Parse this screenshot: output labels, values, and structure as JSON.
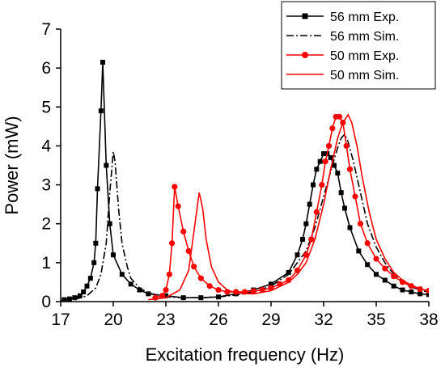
{
  "chart_data": {
    "type": "line",
    "title": "",
    "xlabel": "Excitation frequency (Hz)",
    "ylabel": "Power (mW)",
    "xlim": [
      17,
      38
    ],
    "ylim": [
      0,
      7
    ],
    "xticks": [
      "17",
      "20",
      "23",
      "26",
      "29",
      "32",
      "35",
      "38"
    ],
    "yticks": [
      "0",
      "1",
      "2",
      "3",
      "4",
      "5",
      "6",
      "7"
    ],
    "legend_position": "top-right",
    "grid": false,
    "series": [
      {
        "name": "56 mm Exp.",
        "color": "#000000",
        "line_style": "solid",
        "marker": "square",
        "points": [
          [
            17.2,
            0.05
          ],
          [
            17.5,
            0.07
          ],
          [
            17.8,
            0.1
          ],
          [
            18.1,
            0.15
          ],
          [
            18.3,
            0.25
          ],
          [
            18.5,
            0.4
          ],
          [
            18.7,
            0.6
          ],
          [
            18.9,
            1.0
          ],
          [
            19.0,
            1.5
          ],
          [
            19.1,
            2.9
          ],
          [
            19.3,
            4.9
          ],
          [
            19.4,
            6.15
          ],
          [
            19.6,
            3.5
          ],
          [
            19.8,
            2.0
          ],
          [
            20.0,
            1.2
          ],
          [
            20.5,
            0.7
          ],
          [
            21.0,
            0.45
          ],
          [
            21.5,
            0.3
          ],
          [
            22.0,
            0.2
          ],
          [
            23.0,
            0.15
          ],
          [
            24.0,
            0.1
          ],
          [
            25.0,
            0.1
          ],
          [
            26.0,
            0.12
          ],
          [
            27.0,
            0.2
          ],
          [
            28.0,
            0.3
          ],
          [
            29.0,
            0.45
          ],
          [
            30.0,
            0.75
          ],
          [
            30.5,
            1.2
          ],
          [
            30.8,
            1.6
          ],
          [
            31.0,
            2.0
          ],
          [
            31.2,
            2.5
          ],
          [
            31.4,
            3.0
          ],
          [
            31.6,
            3.4
          ],
          [
            31.8,
            3.6
          ],
          [
            32.0,
            3.8
          ],
          [
            32.2,
            3.8
          ],
          [
            32.4,
            3.7
          ],
          [
            32.6,
            3.5
          ],
          [
            32.8,
            3.3
          ],
          [
            33.0,
            2.8
          ],
          [
            33.2,
            2.4
          ],
          [
            33.5,
            1.9
          ],
          [
            34.0,
            1.3
          ],
          [
            34.5,
            0.95
          ],
          [
            35.0,
            0.7
          ],
          [
            35.5,
            0.55
          ],
          [
            36.0,
            0.4
          ],
          [
            36.5,
            0.3
          ],
          [
            37.0,
            0.25
          ],
          [
            37.5,
            0.2
          ],
          [
            38.0,
            0.18
          ]
        ]
      },
      {
        "name": "56 mm Sim.",
        "color": "#000000",
        "line_style": "dashdot",
        "marker": "none",
        "points": [
          [
            17.0,
            0.02
          ],
          [
            18.0,
            0.08
          ],
          [
            18.5,
            0.15
          ],
          [
            19.0,
            0.35
          ],
          [
            19.3,
            0.7
          ],
          [
            19.6,
            1.5
          ],
          [
            19.8,
            2.8
          ],
          [
            20.0,
            3.85
          ],
          [
            20.1,
            3.6
          ],
          [
            20.3,
            2.4
          ],
          [
            20.5,
            1.5
          ],
          [
            20.8,
            0.9
          ],
          [
            21.0,
            0.6
          ],
          [
            21.5,
            0.35
          ],
          [
            22.0,
            0.22
          ],
          [
            23.0,
            0.12
          ],
          [
            24.0,
            0.1
          ],
          [
            25.0,
            0.1
          ],
          [
            26.0,
            0.12
          ],
          [
            27.0,
            0.17
          ],
          [
            28.0,
            0.25
          ],
          [
            29.0,
            0.4
          ],
          [
            30.0,
            0.7
          ],
          [
            31.0,
            1.3
          ],
          [
            31.5,
            1.9
          ],
          [
            32.0,
            2.7
          ],
          [
            32.5,
            3.5
          ],
          [
            32.8,
            3.95
          ],
          [
            33.0,
            4.2
          ],
          [
            33.2,
            4.3
          ],
          [
            33.4,
            4.1
          ],
          [
            33.7,
            3.6
          ],
          [
            34.0,
            3.0
          ],
          [
            34.5,
            2.0
          ],
          [
            35.0,
            1.4
          ],
          [
            35.5,
            1.0
          ],
          [
            36.0,
            0.7
          ],
          [
            36.5,
            0.5
          ],
          [
            37.0,
            0.38
          ],
          [
            37.5,
            0.3
          ],
          [
            38.0,
            0.24
          ]
        ]
      },
      {
        "name": "50 mm Exp.",
        "color": "#ff0000",
        "line_style": "solid",
        "marker": "circle",
        "points": [
          [
            22.4,
            0.1
          ],
          [
            22.8,
            0.15
          ],
          [
            23.0,
            0.3
          ],
          [
            23.2,
            0.7
          ],
          [
            23.35,
            1.5
          ],
          [
            23.5,
            2.95
          ],
          [
            23.7,
            2.45
          ],
          [
            24.0,
            1.8
          ],
          [
            24.3,
            1.3
          ],
          [
            24.6,
            0.9
          ],
          [
            25.0,
            0.6
          ],
          [
            25.5,
            0.4
          ],
          [
            26.0,
            0.3
          ],
          [
            26.5,
            0.25
          ],
          [
            27.0,
            0.25
          ],
          [
            27.5,
            0.25
          ],
          [
            28.0,
            0.27
          ],
          [
            28.5,
            0.3
          ],
          [
            29.0,
            0.35
          ],
          [
            29.5,
            0.45
          ],
          [
            30.0,
            0.55
          ],
          [
            30.5,
            0.8
          ],
          [
            31.0,
            1.2
          ],
          [
            31.3,
            1.6
          ],
          [
            31.6,
            2.3
          ],
          [
            31.9,
            3.0
          ],
          [
            32.1,
            3.6
          ],
          [
            32.3,
            4.0
          ],
          [
            32.5,
            4.45
          ],
          [
            32.7,
            4.75
          ],
          [
            32.9,
            4.75
          ],
          [
            33.1,
            4.6
          ],
          [
            33.3,
            4.0
          ],
          [
            33.5,
            3.4
          ],
          [
            33.8,
            2.7
          ],
          [
            34.1,
            2.0
          ],
          [
            34.5,
            1.5
          ],
          [
            35.0,
            1.1
          ],
          [
            35.5,
            0.85
          ],
          [
            36.0,
            0.65
          ],
          [
            36.5,
            0.5
          ],
          [
            37.0,
            0.4
          ],
          [
            37.5,
            0.32
          ],
          [
            38.0,
            0.28
          ]
        ]
      },
      {
        "name": "50 mm Sim.",
        "color": "#ff0000",
        "line_style": "solid",
        "marker": "none",
        "points": [
          [
            22.0,
            0.05
          ],
          [
            23.0,
            0.1
          ],
          [
            23.8,
            0.3
          ],
          [
            24.3,
            0.8
          ],
          [
            24.6,
            1.8
          ],
          [
            24.9,
            2.8
          ],
          [
            25.1,
            2.4
          ],
          [
            25.3,
            1.6
          ],
          [
            25.6,
            0.9
          ],
          [
            26.0,
            0.5
          ],
          [
            26.5,
            0.3
          ],
          [
            27.0,
            0.22
          ],
          [
            28.0,
            0.2
          ],
          [
            29.0,
            0.28
          ],
          [
            30.0,
            0.5
          ],
          [
            30.5,
            0.7
          ],
          [
            31.0,
            1.0
          ],
          [
            31.5,
            1.6
          ],
          [
            32.0,
            2.5
          ],
          [
            32.4,
            3.4
          ],
          [
            32.8,
            4.2
          ],
          [
            33.1,
            4.6
          ],
          [
            33.4,
            4.8
          ],
          [
            33.6,
            4.6
          ],
          [
            33.9,
            4.0
          ],
          [
            34.2,
            3.2
          ],
          [
            34.6,
            2.3
          ],
          [
            35.0,
            1.6
          ],
          [
            35.5,
            1.1
          ],
          [
            36.0,
            0.75
          ],
          [
            36.5,
            0.55
          ],
          [
            37.0,
            0.42
          ],
          [
            37.5,
            0.33
          ],
          [
            38.0,
            0.27
          ]
        ]
      }
    ]
  }
}
